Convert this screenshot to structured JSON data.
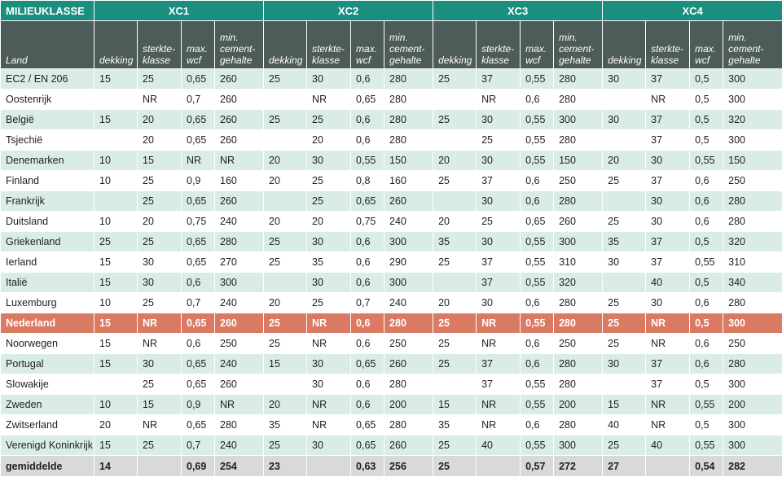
{
  "header": {
    "milieu_label": "MILIEUKLASSE",
    "land_label": "Land",
    "groups": [
      "XC1",
      "XC2",
      "XC3",
      "XC4"
    ],
    "sub_labels": [
      "dekking",
      "sterkte-\nklasse",
      "max.\nwcf",
      "min.\ncement-\ngehalte"
    ]
  },
  "rows": [
    {
      "land": "EC2 / EN 206",
      "v": [
        "15",
        "25",
        "0,65",
        "260",
        "25",
        "30",
        "0,6",
        "280",
        "25",
        "37",
        "0,55",
        "280",
        "30",
        "37",
        "0,5",
        "300"
      ]
    },
    {
      "land": "Oostenrijk",
      "v": [
        "",
        "NR",
        "0,7",
        "260",
        "",
        "NR",
        "0,65",
        "280",
        "",
        "NR",
        "0,6",
        "280",
        "",
        "NR",
        "0,5",
        "300"
      ]
    },
    {
      "land": "België",
      "v": [
        "15",
        "20",
        "0,65",
        "260",
        "25",
        "25",
        "0,6",
        "280",
        "25",
        "30",
        "0,55",
        "300",
        "30",
        "37",
        "0,5",
        "320"
      ]
    },
    {
      "land": "Tsjechië",
      "v": [
        "",
        "20",
        "0,65",
        "260",
        "",
        "20",
        "0,6",
        "280",
        "",
        "25",
        "0,55",
        "280",
        "",
        "37",
        "0,5",
        "300"
      ]
    },
    {
      "land": "Denemarken",
      "v": [
        "10",
        "15",
        "NR",
        "NR",
        "20",
        "30",
        "0,55",
        "150",
        "20",
        "30",
        "0,55",
        "150",
        "20",
        "30",
        "0,55",
        "150"
      ]
    },
    {
      "land": "Finland",
      "v": [
        "10",
        "25",
        "0,9",
        "160",
        "20",
        "25",
        "0,8",
        "160",
        "25",
        "37",
        "0,6",
        "250",
        "25",
        "37",
        "0,6",
        "250"
      ]
    },
    {
      "land": "Frankrijk",
      "v": [
        "",
        "25",
        "0,65",
        "260",
        "",
        "25",
        "0,65",
        "260",
        "",
        "30",
        "0,6",
        "280",
        "",
        "30",
        "0,6",
        "280"
      ]
    },
    {
      "land": "Duitsland",
      "v": [
        "10",
        "20",
        "0,75",
        "240",
        "20",
        "20",
        "0,75",
        "240",
        "20",
        "25",
        "0,65",
        "260",
        "25",
        "30",
        "0,6",
        "280"
      ]
    },
    {
      "land": "Griekenland",
      "v": [
        "25",
        "25",
        "0,65",
        "280",
        "25",
        "30",
        "0,6",
        "300",
        "35",
        "30",
        "0,55",
        "300",
        "35",
        "37",
        "0,5",
        "320"
      ]
    },
    {
      "land": "Ierland",
      "v": [
        "15",
        "30",
        "0,65",
        "270",
        "25",
        "35",
        "0,6",
        "290",
        "25",
        "37",
        "0,55",
        "310",
        "30",
        "37",
        "0,55",
        "310"
      ]
    },
    {
      "land": "Italië",
      "v": [
        "15",
        "30",
        "0,6",
        "300",
        "",
        "30",
        "0,6",
        "300",
        "",
        "37",
        "0,55",
        "320",
        "",
        "40",
        "0,5",
        "340"
      ]
    },
    {
      "land": "Luxemburg",
      "v": [
        "10",
        "25",
        "0,7",
        "240",
        "20",
        "25",
        "0,7",
        "240",
        "20",
        "30",
        "0,6",
        "280",
        "25",
        "30",
        "0,6",
        "280"
      ]
    },
    {
      "land": "Nederland",
      "highlight": true,
      "v": [
        "15",
        "NR",
        "0,65",
        "260",
        "25",
        "NR",
        "0,6",
        "280",
        "25",
        "NR",
        "0,55",
        "280",
        "25",
        "NR",
        "0,5",
        "300"
      ]
    },
    {
      "land": "Noorwegen",
      "v": [
        "15",
        "NR",
        "0,6",
        "250",
        "25",
        "NR",
        "0,6",
        "250",
        "25",
        "NR",
        "0,6",
        "250",
        "25",
        "NR",
        "0,6",
        "250"
      ]
    },
    {
      "land": "Portugal",
      "v": [
        "15",
        "30",
        "0,65",
        "240",
        "15",
        "30",
        "0,65",
        "260",
        "25",
        "37",
        "0,6",
        "280",
        "30",
        "37",
        "0,6",
        "280"
      ]
    },
    {
      "land": "Slowakije",
      "v": [
        "",
        "25",
        "0,65",
        "260",
        "",
        "30",
        "0,6",
        "280",
        "",
        "37",
        "0,55",
        "280",
        "",
        "37",
        "0,5",
        "300"
      ]
    },
    {
      "land": "Zweden",
      "v": [
        "10",
        "15",
        "0,9",
        "NR",
        "20",
        "NR",
        "0,6",
        "200",
        "15",
        "NR",
        "0,55",
        "200",
        "15",
        "NR",
        "0,55",
        "200"
      ]
    },
    {
      "land": "Zwitserland",
      "v": [
        "20",
        "NR",
        "0,65",
        "280",
        "35",
        "NR",
        "0,65",
        "280",
        "35",
        "NR",
        "0,6",
        "280",
        "40",
        "NR",
        "0,5",
        "300"
      ]
    },
    {
      "land": "Verenigd Koninkrijk",
      "v": [
        "15",
        "25",
        "0,7",
        "240",
        "25",
        "30",
        "0,65",
        "260",
        "25",
        "40",
        "0,55",
        "300",
        "25",
        "40",
        "0,55",
        "300"
      ]
    }
  ],
  "average": {
    "land": "gemiddelde",
    "v": [
      "14",
      "",
      "0,69",
      "254",
      "23",
      "",
      "0,63",
      "256",
      "25",
      "",
      "0,57",
      "272",
      "27",
      "",
      "0,54",
      "282"
    ]
  },
  "colors": {
    "group_header": "#1a8f7f",
    "sub_header": "#4d5b59",
    "stripe": "#d9ece7",
    "highlight": "#db7a63",
    "average": "#d9d9d9"
  }
}
